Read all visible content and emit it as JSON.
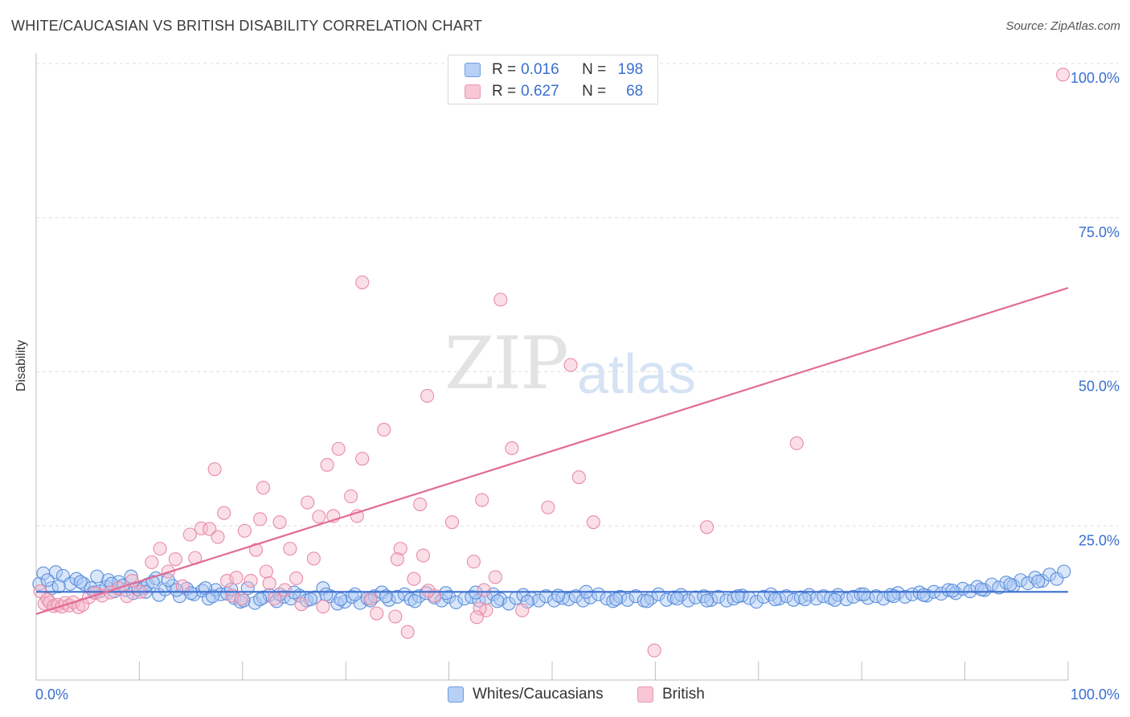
{
  "header": {
    "title": "WHITE/CAUCASIAN VS BRITISH DISABILITY CORRELATION CHART",
    "source": "Source: ZipAtlas.com"
  },
  "watermark": {
    "zip": "ZIP",
    "atlas": "atlas"
  },
  "legend": {
    "white": {
      "r_label": "R =",
      "r_value": "0.016",
      "n_label": "N =",
      "n_value": "198"
    },
    "british": {
      "r_label": "R =",
      "r_value": "0.627",
      "n_label": "N =",
      "n_value": "68"
    },
    "bottom": {
      "white_label": "Whites/Caucasians",
      "british_label": "British"
    }
  },
  "colors": {
    "white_fill": "#aac8f5",
    "white_stroke": "#5b8fdb",
    "white_line": "#3b6fd0",
    "british_fill": "#f6b7c9",
    "british_stroke": "#e98aa8",
    "british_line": "#e26b93",
    "tick_label": "#3a6fd0",
    "grid": "#dedede"
  },
  "chart_data": {
    "type": "scatter",
    "title": "WHITE/CAUCASIAN VS BRITISH DISABILITY CORRELATION CHART",
    "xlabel": "",
    "ylabel": "Disability",
    "xlim": [
      0,
      100
    ],
    "ylim": [
      0,
      100
    ],
    "x_tick_labels": [
      {
        "value": 0,
        "label": "0.0%"
      },
      {
        "value": 100,
        "label": "100.0%"
      }
    ],
    "y_tick_labels": [
      {
        "value": 25,
        "label": "25.0%"
      },
      {
        "value": 50,
        "label": "50.0%"
      },
      {
        "value": 75,
        "label": "75.0%"
      },
      {
        "value": 100,
        "label": "100.0%"
      }
    ],
    "grid_y": [
      25,
      50,
      75,
      100
    ],
    "series": [
      {
        "name": "Whites/Caucasians",
        "r": 0.016,
        "n": 198,
        "trend": {
          "x": [
            0,
            100
          ],
          "y": [
            14.3,
            14.3
          ]
        },
        "points": [
          [
            0.3,
            15.6
          ],
          [
            0.7,
            17.3
          ],
          [
            1.5,
            14.9
          ],
          [
            1.9,
            17.5
          ],
          [
            2.6,
            16.9
          ],
          [
            3.3,
            15.6
          ],
          [
            3.9,
            16.4
          ],
          [
            4.6,
            15.6
          ],
          [
            5.3,
            14.9
          ],
          [
            5.9,
            16.8
          ],
          [
            6.2,
            14.4
          ],
          [
            6.8,
            15.1
          ],
          [
            7.0,
            16.2
          ],
          [
            7.6,
            14.4
          ],
          [
            8.0,
            15.9
          ],
          [
            8.7,
            14.6
          ],
          [
            9.4,
            14.1
          ],
          [
            9.9,
            14.7
          ],
          [
            10.4,
            14.9
          ],
          [
            10.8,
            15.5
          ],
          [
            11.6,
            16.5
          ],
          [
            11.9,
            13.8
          ],
          [
            12.5,
            14.7
          ],
          [
            13.2,
            15.3
          ],
          [
            13.9,
            13.6
          ],
          [
            14.6,
            14.8
          ],
          [
            15.3,
            13.9
          ],
          [
            16.1,
            14.5
          ],
          [
            16.7,
            13.2
          ],
          [
            17.4,
            14.6
          ],
          [
            17.9,
            13.9
          ],
          [
            18.5,
            14.0
          ],
          [
            19.2,
            13.3
          ],
          [
            19.8,
            12.7
          ],
          [
            20.5,
            14.9
          ],
          [
            21.2,
            12.5
          ],
          [
            22.0,
            13.4
          ],
          [
            22.6,
            13.8
          ],
          [
            23.3,
            12.8
          ],
          [
            24.0,
            13.5
          ],
          [
            24.7,
            13.2
          ],
          [
            25.5,
            13.7
          ],
          [
            26.2,
            12.9
          ],
          [
            27.0,
            13.4
          ],
          [
            27.8,
            14.9
          ],
          [
            28.5,
            13.6
          ],
          [
            29.2,
            12.4
          ],
          [
            29.9,
            12.7
          ],
          [
            30.6,
            13.5
          ],
          [
            31.4,
            12.5
          ],
          [
            32.1,
            13.2
          ],
          [
            32.8,
            13.6
          ],
          [
            33.5,
            14.2
          ],
          [
            34.2,
            13.0
          ],
          [
            35.0,
            13.5
          ],
          [
            35.7,
            13.9
          ],
          [
            36.3,
            13.1
          ],
          [
            37.1,
            13.6
          ],
          [
            37.8,
            14.1
          ],
          [
            38.6,
            13.4
          ],
          [
            39.3,
            12.9
          ],
          [
            40.0,
            13.5
          ],
          [
            40.7,
            12.6
          ],
          [
            41.5,
            13.2
          ],
          [
            42.2,
            13.5
          ],
          [
            42.9,
            12.9
          ],
          [
            43.6,
            13.3
          ],
          [
            44.3,
            13.9
          ],
          [
            45.0,
            13.1
          ],
          [
            45.8,
            12.4
          ],
          [
            46.5,
            13.3
          ],
          [
            47.2,
            13.8
          ],
          [
            48.0,
            13.2
          ],
          [
            48.7,
            12.9
          ],
          [
            49.4,
            13.6
          ],
          [
            50.2,
            12.9
          ],
          [
            51.0,
            13.3
          ],
          [
            51.6,
            13.1
          ],
          [
            52.3,
            13.6
          ],
          [
            53.0,
            12.9
          ],
          [
            53.7,
            13.4
          ],
          [
            54.5,
            13.9
          ],
          [
            55.3,
            13.2
          ],
          [
            55.9,
            12.8
          ],
          [
            56.6,
            13.5
          ],
          [
            57.3,
            13.0
          ],
          [
            58.1,
            13.6
          ],
          [
            58.9,
            12.9
          ],
          [
            59.6,
            13.3
          ],
          [
            60.3,
            13.9
          ],
          [
            61.1,
            13.0
          ],
          [
            61.8,
            13.4
          ],
          [
            62.5,
            13.8
          ],
          [
            63.2,
            12.9
          ],
          [
            63.9,
            13.4
          ],
          [
            64.7,
            13.6
          ],
          [
            65.4,
            13.0
          ],
          [
            66.1,
            13.5
          ],
          [
            66.9,
            12.9
          ],
          [
            67.6,
            13.2
          ],
          [
            68.4,
            13.7
          ],
          [
            69.1,
            13.3
          ],
          [
            69.8,
            12.7
          ],
          [
            70.5,
            13.5
          ],
          [
            71.2,
            13.9
          ],
          [
            72.0,
            13.2
          ],
          [
            72.7,
            13.6
          ],
          [
            73.4,
            13.0
          ],
          [
            74.1,
            13.4
          ],
          [
            74.9,
            13.8
          ],
          [
            75.6,
            13.2
          ],
          [
            76.3,
            13.6
          ],
          [
            77.0,
            13.3
          ],
          [
            77.7,
            13.8
          ],
          [
            78.5,
            13.1
          ],
          [
            79.2,
            13.5
          ],
          [
            79.9,
            13.9
          ],
          [
            80.6,
            13.3
          ],
          [
            81.4,
            13.6
          ],
          [
            82.1,
            13.2
          ],
          [
            82.8,
            13.8
          ],
          [
            83.5,
            14.1
          ],
          [
            84.2,
            13.5
          ],
          [
            84.9,
            13.9
          ],
          [
            85.6,
            14.2
          ],
          [
            86.3,
            13.7
          ],
          [
            87.0,
            14.3
          ],
          [
            87.7,
            14.0
          ],
          [
            88.4,
            14.6
          ],
          [
            89.1,
            14.1
          ],
          [
            89.8,
            14.8
          ],
          [
            90.5,
            14.4
          ],
          [
            91.2,
            15.1
          ],
          [
            91.9,
            14.6
          ],
          [
            92.6,
            15.5
          ],
          [
            93.3,
            15.0
          ],
          [
            94.0,
            15.8
          ],
          [
            94.7,
            15.3
          ],
          [
            95.4,
            16.2
          ],
          [
            96.1,
            15.7
          ],
          [
            96.8,
            16.6
          ],
          [
            97.5,
            16.1
          ],
          [
            98.2,
            17.1
          ],
          [
            98.9,
            16.4
          ],
          [
            99.6,
            17.6
          ],
          [
            1.1,
            16.2
          ],
          [
            2.2,
            15.2
          ],
          [
            4.3,
            15.9
          ],
          [
            5.6,
            14.2
          ],
          [
            7.3,
            15.6
          ],
          [
            8.4,
            15.3
          ],
          [
            9.2,
            16.8
          ],
          [
            10.6,
            14.3
          ],
          [
            11.3,
            15.9
          ],
          [
            12.8,
            16.2
          ],
          [
            13.6,
            14.6
          ],
          [
            15.0,
            14.1
          ],
          [
            16.4,
            14.9
          ],
          [
            17.1,
            13.6
          ],
          [
            18.9,
            14.7
          ],
          [
            20.1,
            12.9
          ],
          [
            21.7,
            13.1
          ],
          [
            23.6,
            13.9
          ],
          [
            25.0,
            14.2
          ],
          [
            26.6,
            13.1
          ],
          [
            28.1,
            13.9
          ],
          [
            29.5,
            13.1
          ],
          [
            30.9,
            13.9
          ],
          [
            32.4,
            12.9
          ],
          [
            33.9,
            13.6
          ],
          [
            36.7,
            12.8
          ],
          [
            39.7,
            14.1
          ],
          [
            42.6,
            14.2
          ],
          [
            44.7,
            12.8
          ],
          [
            47.6,
            12.7
          ],
          [
            50.6,
            13.7
          ],
          [
            53.3,
            14.3
          ],
          [
            56.2,
            13.1
          ],
          [
            59.2,
            12.8
          ],
          [
            62.1,
            13.2
          ],
          [
            65.0,
            12.9
          ],
          [
            68.0,
            13.6
          ],
          [
            71.6,
            13.1
          ],
          [
            74.5,
            13.1
          ],
          [
            77.4,
            13.0
          ],
          [
            80.2,
            13.9
          ],
          [
            83.1,
            13.6
          ],
          [
            86.0,
            13.8
          ],
          [
            88.8,
            14.5
          ],
          [
            91.6,
            14.7
          ],
          [
            94.4,
            15.5
          ],
          [
            97.1,
            16.0
          ]
        ]
      },
      {
        "name": "British",
        "r": 0.627,
        "n": 68,
        "trend": {
          "x": [
            0,
            100
          ],
          "y": [
            10.7,
            63.6
          ]
        },
        "points": [
          [
            0.4,
            14.4
          ],
          [
            0.8,
            12.4
          ],
          [
            1.1,
            13.1
          ],
          [
            1.3,
            12.6
          ],
          [
            1.7,
            12.0
          ],
          [
            2.1,
            12.2
          ],
          [
            2.5,
            11.9
          ],
          [
            2.8,
            12.5
          ],
          [
            3.2,
            12.1
          ],
          [
            3.6,
            12.6
          ],
          [
            4.1,
            11.8
          ],
          [
            4.5,
            12.2
          ],
          [
            5.1,
            13.4
          ],
          [
            5.8,
            14.1
          ],
          [
            6.4,
            13.7
          ],
          [
            7.2,
            14.2
          ],
          [
            8.0,
            14.9
          ],
          [
            8.8,
            13.6
          ],
          [
            9.3,
            16.1
          ],
          [
            10.1,
            14.3
          ],
          [
            11.2,
            19.1
          ],
          [
            12.0,
            21.3
          ],
          [
            12.8,
            17.6
          ],
          [
            13.5,
            19.6
          ],
          [
            14.2,
            15.2
          ],
          [
            14.9,
            23.6
          ],
          [
            15.4,
            19.8
          ],
          [
            16.0,
            24.6
          ],
          [
            16.8,
            24.5
          ],
          [
            17.3,
            34.2
          ],
          [
            17.6,
            23.2
          ],
          [
            18.2,
            27.1
          ],
          [
            18.5,
            16.1
          ],
          [
            19.0,
            13.7
          ],
          [
            19.4,
            16.6
          ],
          [
            19.9,
            13.2
          ],
          [
            20.2,
            24.2
          ],
          [
            20.8,
            16.1
          ],
          [
            21.3,
            21.1
          ],
          [
            21.7,
            26.1
          ],
          [
            22.0,
            31.2
          ],
          [
            22.3,
            17.6
          ],
          [
            22.6,
            15.7
          ],
          [
            23.1,
            13.2
          ],
          [
            23.6,
            25.6
          ],
          [
            24.1,
            14.6
          ],
          [
            24.6,
            21.3
          ],
          [
            25.2,
            16.5
          ],
          [
            25.7,
            12.3
          ],
          [
            26.3,
            28.8
          ],
          [
            26.9,
            19.7
          ],
          [
            27.4,
            26.5
          ],
          [
            27.8,
            11.9
          ],
          [
            28.2,
            34.9
          ],
          [
            28.8,
            26.6
          ],
          [
            29.3,
            37.5
          ],
          [
            30.5,
            29.8
          ],
          [
            31.1,
            26.6
          ],
          [
            31.6,
            35.9
          ],
          [
            32.4,
            13.2
          ],
          [
            33.0,
            10.8
          ],
          [
            33.7,
            40.6
          ],
          [
            34.8,
            10.3
          ],
          [
            35.3,
            21.3
          ],
          [
            36.0,
            7.8
          ],
          [
            36.6,
            16.4
          ],
          [
            37.2,
            28.5
          ],
          [
            37.9,
            46.1
          ]
        ]
      }
    ]
  }
}
